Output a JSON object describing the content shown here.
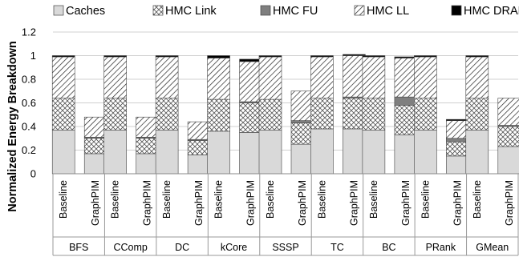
{
  "chart_data": {
    "type": "bar",
    "stacked": true,
    "ylabel": "Normalized Energy Breakdown",
    "ylim": [
      0,
      1.2
    ],
    "yticks": [
      "0",
      "0.2",
      "0.4",
      "0.6",
      "0.8",
      "1",
      "1.2"
    ],
    "grid": "horizontal",
    "legend_position": "top",
    "groups": [
      "BFS",
      "CComp",
      "DC",
      "kCore",
      "SSSP",
      "TC",
      "BC",
      "PRank",
      "GMean"
    ],
    "configs": [
      "Baseline",
      "GraphPIM"
    ],
    "series": [
      {
        "name": "Caches",
        "color": "#d9d9d9",
        "pattern": "solid",
        "values": [
          [
            0.37,
            0.17
          ],
          [
            0.37,
            0.17
          ],
          [
            0.37,
            0.16
          ],
          [
            0.36,
            0.35
          ],
          [
            0.37,
            0.25
          ],
          [
            0.38,
            0.38
          ],
          [
            0.37,
            0.33
          ],
          [
            0.37,
            0.15
          ],
          [
            0.37,
            0.23
          ]
        ]
      },
      {
        "name": "HMC Link",
        "color": "#ffffff",
        "pattern": "crosshatch",
        "values": [
          [
            0.27,
            0.13
          ],
          [
            0.27,
            0.13
          ],
          [
            0.27,
            0.12
          ],
          [
            0.27,
            0.25
          ],
          [
            0.26,
            0.18
          ],
          [
            0.26,
            0.26
          ],
          [
            0.27,
            0.25
          ],
          [
            0.27,
            0.12
          ],
          [
            0.27,
            0.17
          ]
        ]
      },
      {
        "name": "HMC FU",
        "color": "#7f7f7f",
        "pattern": "solid",
        "values": [
          [
            0.0,
            0.01
          ],
          [
            0.0,
            0.01
          ],
          [
            0.0,
            0.01
          ],
          [
            0.0,
            0.01
          ],
          [
            0.0,
            0.02
          ],
          [
            0.0,
            0.01
          ],
          [
            0.0,
            0.07
          ],
          [
            0.0,
            0.03
          ],
          [
            0.0,
            0.01
          ]
        ]
      },
      {
        "name": "HMC LL",
        "color": "#ffffff",
        "pattern": "diagonal",
        "values": [
          [
            0.35,
            0.17
          ],
          [
            0.35,
            0.17
          ],
          [
            0.35,
            0.15
          ],
          [
            0.35,
            0.34
          ],
          [
            0.36,
            0.25
          ],
          [
            0.35,
            0.35
          ],
          [
            0.35,
            0.33
          ],
          [
            0.35,
            0.15
          ],
          [
            0.35,
            0.23
          ]
        ]
      },
      {
        "name": "HMC DRAM",
        "color": "#000000",
        "pattern": "solid",
        "values": [
          [
            0.01,
            0.0
          ],
          [
            0.01,
            0.0
          ],
          [
            0.01,
            0.0
          ],
          [
            0.02,
            0.02
          ],
          [
            0.01,
            0.0
          ],
          [
            0.01,
            0.01
          ],
          [
            0.01,
            0.01
          ],
          [
            0.01,
            0.01
          ],
          [
            0.01,
            0.0
          ]
        ]
      }
    ]
  }
}
